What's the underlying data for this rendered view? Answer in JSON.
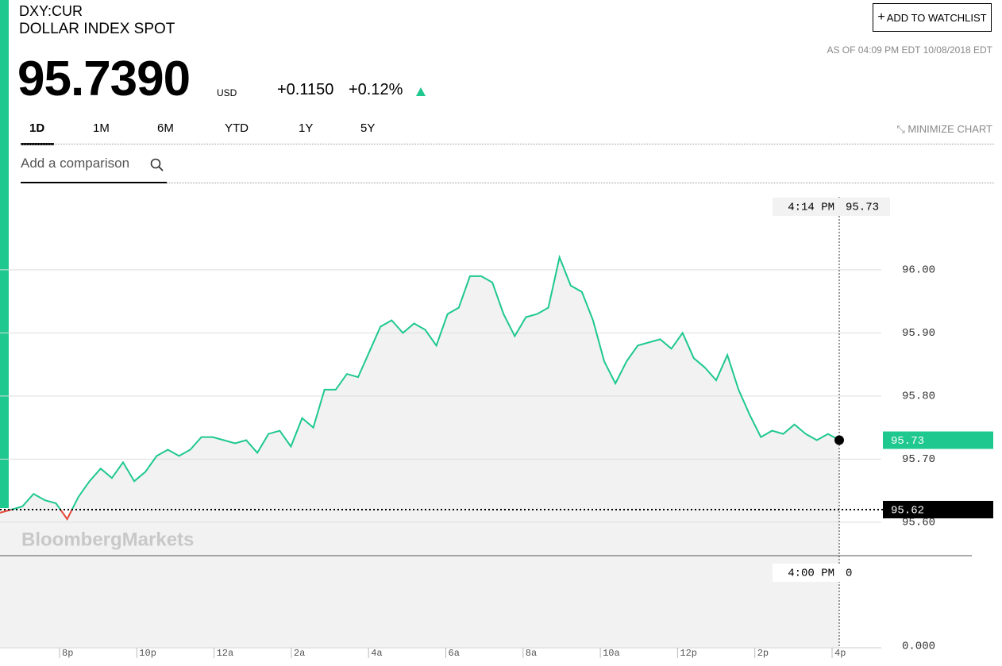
{
  "header": {
    "symbol": "DXY:CUR",
    "name": "DOLLAR INDEX SPOT",
    "price": "95.7390",
    "currency": "USD",
    "change": "+0.1150",
    "change_pct": "+0.12%",
    "watchlist_button": "ADD TO WATCHLIST",
    "as_of": "AS OF 04:09 PM EDT 10/08/2018 EDT"
  },
  "tabs": [
    "1D",
    "1M",
    "6M",
    "YTD",
    "1Y",
    "5Y"
  ],
  "minimize": "MINIMIZE CHART",
  "comparison_placeholder": "Add a comparison",
  "chart_data": {
    "type": "line",
    "watermark": "BloombergMarkets",
    "color": "#1ec88f",
    "below_color": "#f0483a",
    "xtick_labels": [
      "8p",
      "10p",
      "12a",
      "2a",
      "4a",
      "6a",
      "8a",
      "10a",
      "12p",
      "2p",
      "4p"
    ],
    "values": [
      95.615,
      95.62,
      95.625,
      95.645,
      95.635,
      95.63,
      95.605,
      95.64,
      95.665,
      95.685,
      95.67,
      95.695,
      95.665,
      95.68,
      95.705,
      95.715,
      95.705,
      95.715,
      95.735,
      95.735,
      95.73,
      95.725,
      95.73,
      95.71,
      95.74,
      95.745,
      95.72,
      95.765,
      95.75,
      95.81,
      95.81,
      95.835,
      95.83,
      95.87,
      95.91,
      95.92,
      95.9,
      95.915,
      95.905,
      95.88,
      95.93,
      95.94,
      95.99,
      95.99,
      95.98,
      95.93,
      95.895,
      95.925,
      95.93,
      95.94,
      96.02,
      95.975,
      95.965,
      95.92,
      95.855,
      95.82,
      95.855,
      95.88,
      95.885,
      95.89,
      95.875,
      95.9,
      95.86,
      95.845,
      95.825,
      95.865,
      95.81,
      95.77,
      95.735,
      95.745,
      95.74,
      95.755,
      95.74,
      95.73,
      95.74,
      95.73
    ],
    "ylim": [
      95.547,
      96.132
    ],
    "yticks": [
      {
        "value": 96,
        "label": "96.00"
      },
      {
        "value": 95.9,
        "label": "95.90"
      },
      {
        "value": 95.8,
        "label": "95.80"
      },
      {
        "value": 95.7,
        "label": "95.70"
      },
      {
        "value": 95.6,
        "label": "95.60"
      }
    ],
    "previous_close": 95.62,
    "last": 95.73,
    "cursor_time": "4:14 PM",
    "cursor_value": 95.73,
    "volume_time": "4:00 PM",
    "volume_value": 0,
    "volume_yticks": [
      {
        "value": 0,
        "label": "0.000"
      }
    ]
  }
}
